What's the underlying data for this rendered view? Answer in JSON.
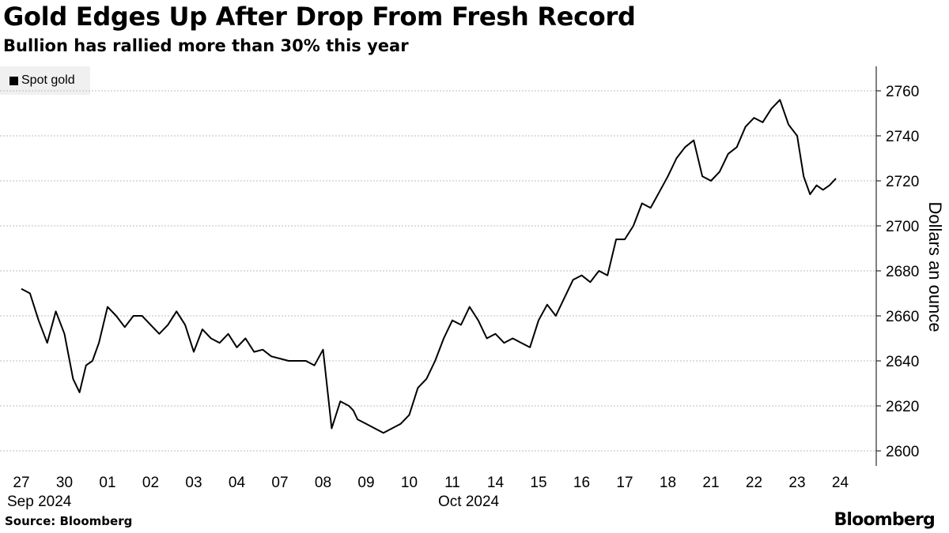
{
  "header": {
    "title": "Gold Edges Up After Drop From Fresh Record",
    "subtitle": "Bullion has rallied more than 30% this year"
  },
  "legend": {
    "label": "Spot gold"
  },
  "footer": {
    "source": "Source: Bloomberg",
    "logo": "Bloomberg"
  },
  "colors": {
    "line": "#000000",
    "grid": "#bdbdbd",
    "legend_bg": "#f0f0f0"
  },
  "chart_data": {
    "type": "line",
    "title": "Gold Edges Up After Drop From Fresh Record",
    "subtitle": "Bullion has rallied more than 30% this year",
    "ylabel": "Dollars an ounce",
    "ylim": [
      2595,
      2765
    ],
    "yticks": [
      2600,
      2620,
      2640,
      2660,
      2680,
      2700,
      2720,
      2740,
      2760
    ],
    "x_tick_labels": [
      "27",
      "30",
      "01",
      "02",
      "03",
      "04",
      "07",
      "08",
      "09",
      "10",
      "11",
      "14",
      "15",
      "16",
      "17",
      "18",
      "21",
      "22",
      "23",
      "24"
    ],
    "x_month_labels": [
      {
        "label": "Sep 2024",
        "at": "27"
      },
      {
        "label": "Oct 2024",
        "at": "11"
      }
    ],
    "grid": "horizontal dotted",
    "legend_position": "top-left",
    "series": [
      {
        "name": "Spot gold",
        "x": [
          0,
          0.2,
          0.4,
          0.6,
          0.8,
          1.0,
          1.2,
          1.35,
          1.5,
          1.65,
          1.8,
          2.0,
          2.2,
          2.4,
          2.6,
          2.8,
          3.0,
          3.2,
          3.4,
          3.6,
          3.8,
          4.0,
          4.2,
          4.4,
          4.6,
          4.8,
          5.0,
          5.2,
          5.4,
          5.6,
          5.8,
          6.0,
          6.2,
          6.4,
          6.6,
          6.8,
          7.0,
          7.2,
          7.4,
          7.6,
          7.7,
          7.8,
          8.0,
          8.2,
          8.4,
          8.6,
          8.8,
          9.0,
          9.2,
          9.4,
          9.6,
          9.8,
          10.0,
          10.2,
          10.4,
          10.6,
          10.8,
          11.0,
          11.2,
          11.4,
          11.6,
          11.8,
          12.0,
          12.2,
          12.4,
          12.6,
          12.8,
          13.0,
          13.2,
          13.4,
          13.6,
          13.8,
          14.0,
          14.2,
          14.4,
          14.6,
          14.8,
          15.0,
          15.2,
          15.4,
          15.6,
          15.8,
          16.0,
          16.2,
          16.4,
          16.6,
          16.8,
          17.0,
          17.2,
          17.4,
          17.6,
          17.8,
          18.0,
          18.15,
          18.3,
          18.45,
          18.6,
          18.75,
          18.9
        ],
        "values": [
          2672,
          2670,
          2658,
          2648,
          2662,
          2652,
          2632,
          2626,
          2638,
          2640,
          2648,
          2664,
          2660,
          2655,
          2660,
          2660,
          2656,
          2652,
          2656,
          2662,
          2656,
          2644,
          2654,
          2650,
          2648,
          2652,
          2646,
          2650,
          2644,
          2645,
          2642,
          2641,
          2640,
          2640,
          2640,
          2638,
          2645,
          2610,
          2622,
          2620,
          2618,
          2614,
          2612,
          2610,
          2608,
          2610,
          2612,
          2616,
          2628,
          2632,
          2640,
          2650,
          2658,
          2656,
          2664,
          2658,
          2650,
          2652,
          2648,
          2650,
          2648,
          2646,
          2658,
          2665,
          2660,
          2668,
          2676,
          2678,
          2675,
          2680,
          2678,
          2694,
          2694,
          2700,
          2710,
          2708,
          2715,
          2722,
          2730,
          2735,
          2738,
          2722,
          2720,
          2724,
          2732,
          2735,
          2744,
          2748,
          2746,
          2752,
          2756,
          2745,
          2740,
          2722,
          2714,
          2718,
          2716,
          2718,
          2721
        ]
      }
    ]
  }
}
